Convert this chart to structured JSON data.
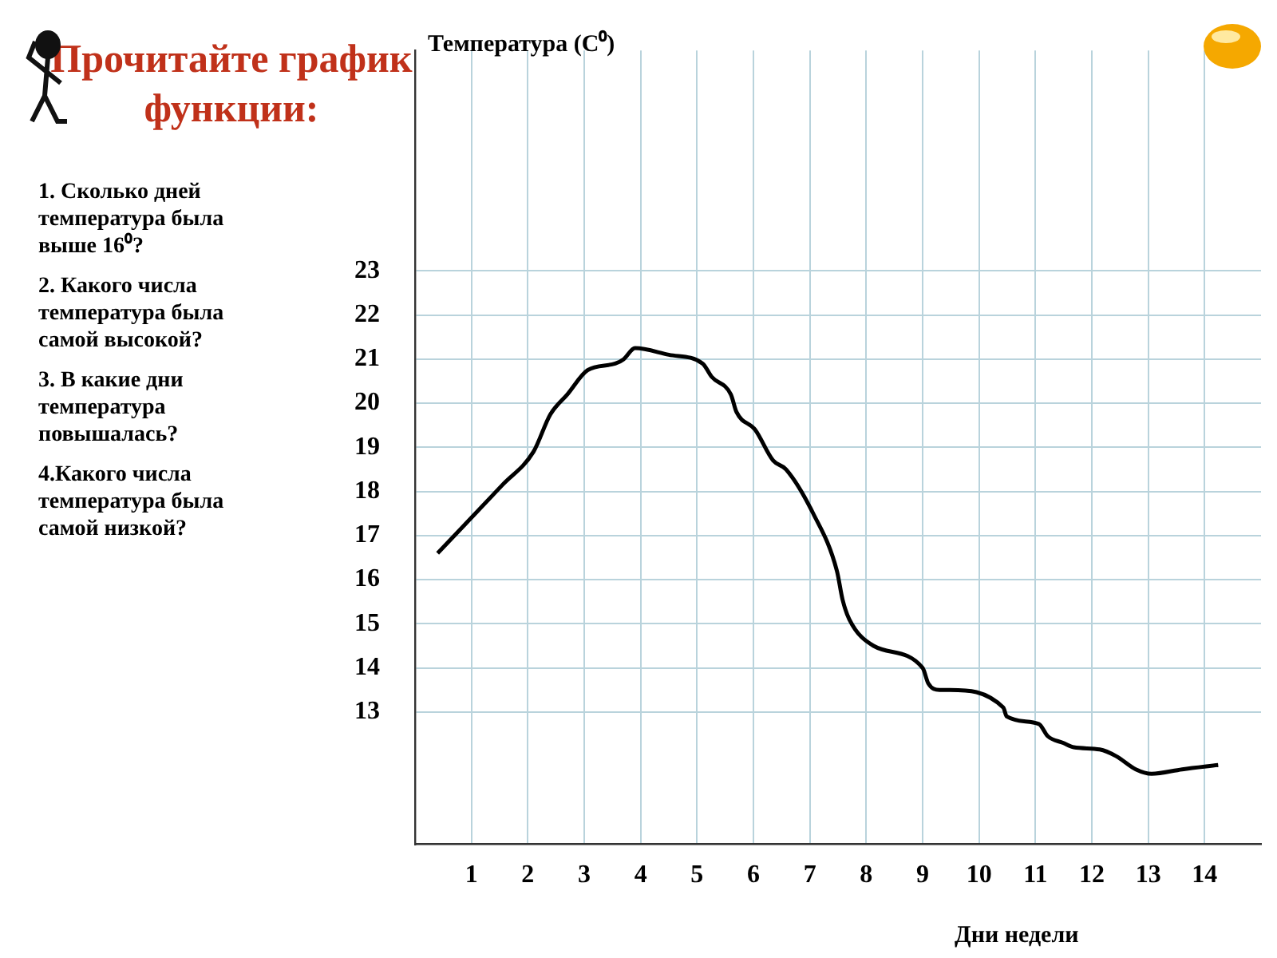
{
  "chart_data": {
    "type": "line",
    "title": "Прочитайте график функции:",
    "ylabel": "Температура (C⁰)",
    "xlabel": "Дни недели",
    "annotations": [
      "1. Сколько дней температура была выше 16⁰?",
      "2. Какого числа температура была самой высокой?",
      "3. В какие дни температура повышалась?",
      "4.Какого числа температура была самой низкой?"
    ],
    "series": [
      {
        "color": "#000000",
        "x": [
          0.4,
          1.55,
          2.1,
          2.4,
          2.7,
          3.06,
          3.55,
          3.7,
          3.9,
          4.5,
          5.1,
          5.26,
          5.6,
          5.7,
          6.03,
          6.35,
          6.58,
          7.06,
          7.48,
          7.58,
          7.7,
          8.13,
          9.0,
          9.1,
          9.3,
          9.48,
          10.43,
          10.49,
          11.06,
          11.22,
          11.49,
          11.68,
          12.14,
          12.43,
          12.78,
          13.06,
          13.6,
          14.24
        ],
        "values": [
          16.6,
          18.15,
          18.9,
          19.75,
          20.2,
          20.75,
          20.9,
          21.0,
          21.25,
          21.1,
          20.9,
          20.6,
          20.2,
          19.8,
          19.4,
          18.7,
          18.5,
          17.5,
          16.2,
          15.55,
          15.1,
          14.5,
          14.0,
          13.65,
          13.5,
          13.5,
          13.1,
          12.9,
          12.73,
          12.45,
          12.3,
          12.2,
          12.15,
          12.0,
          11.7,
          11.6,
          11.7,
          11.8
        ]
      }
    ],
    "xlim": [
      0,
      15
    ],
    "xticks": [
      1,
      2,
      3,
      4,
      5,
      6,
      7,
      8,
      9,
      10,
      11,
      12,
      13,
      14
    ],
    "ylim": [
      10,
      28
    ],
    "yticks": [
      13,
      14,
      15,
      16,
      17,
      18,
      19,
      20,
      21,
      22,
      23
    ],
    "grid": true,
    "legend": false,
    "marker": "none",
    "line_style": "solid"
  }
}
